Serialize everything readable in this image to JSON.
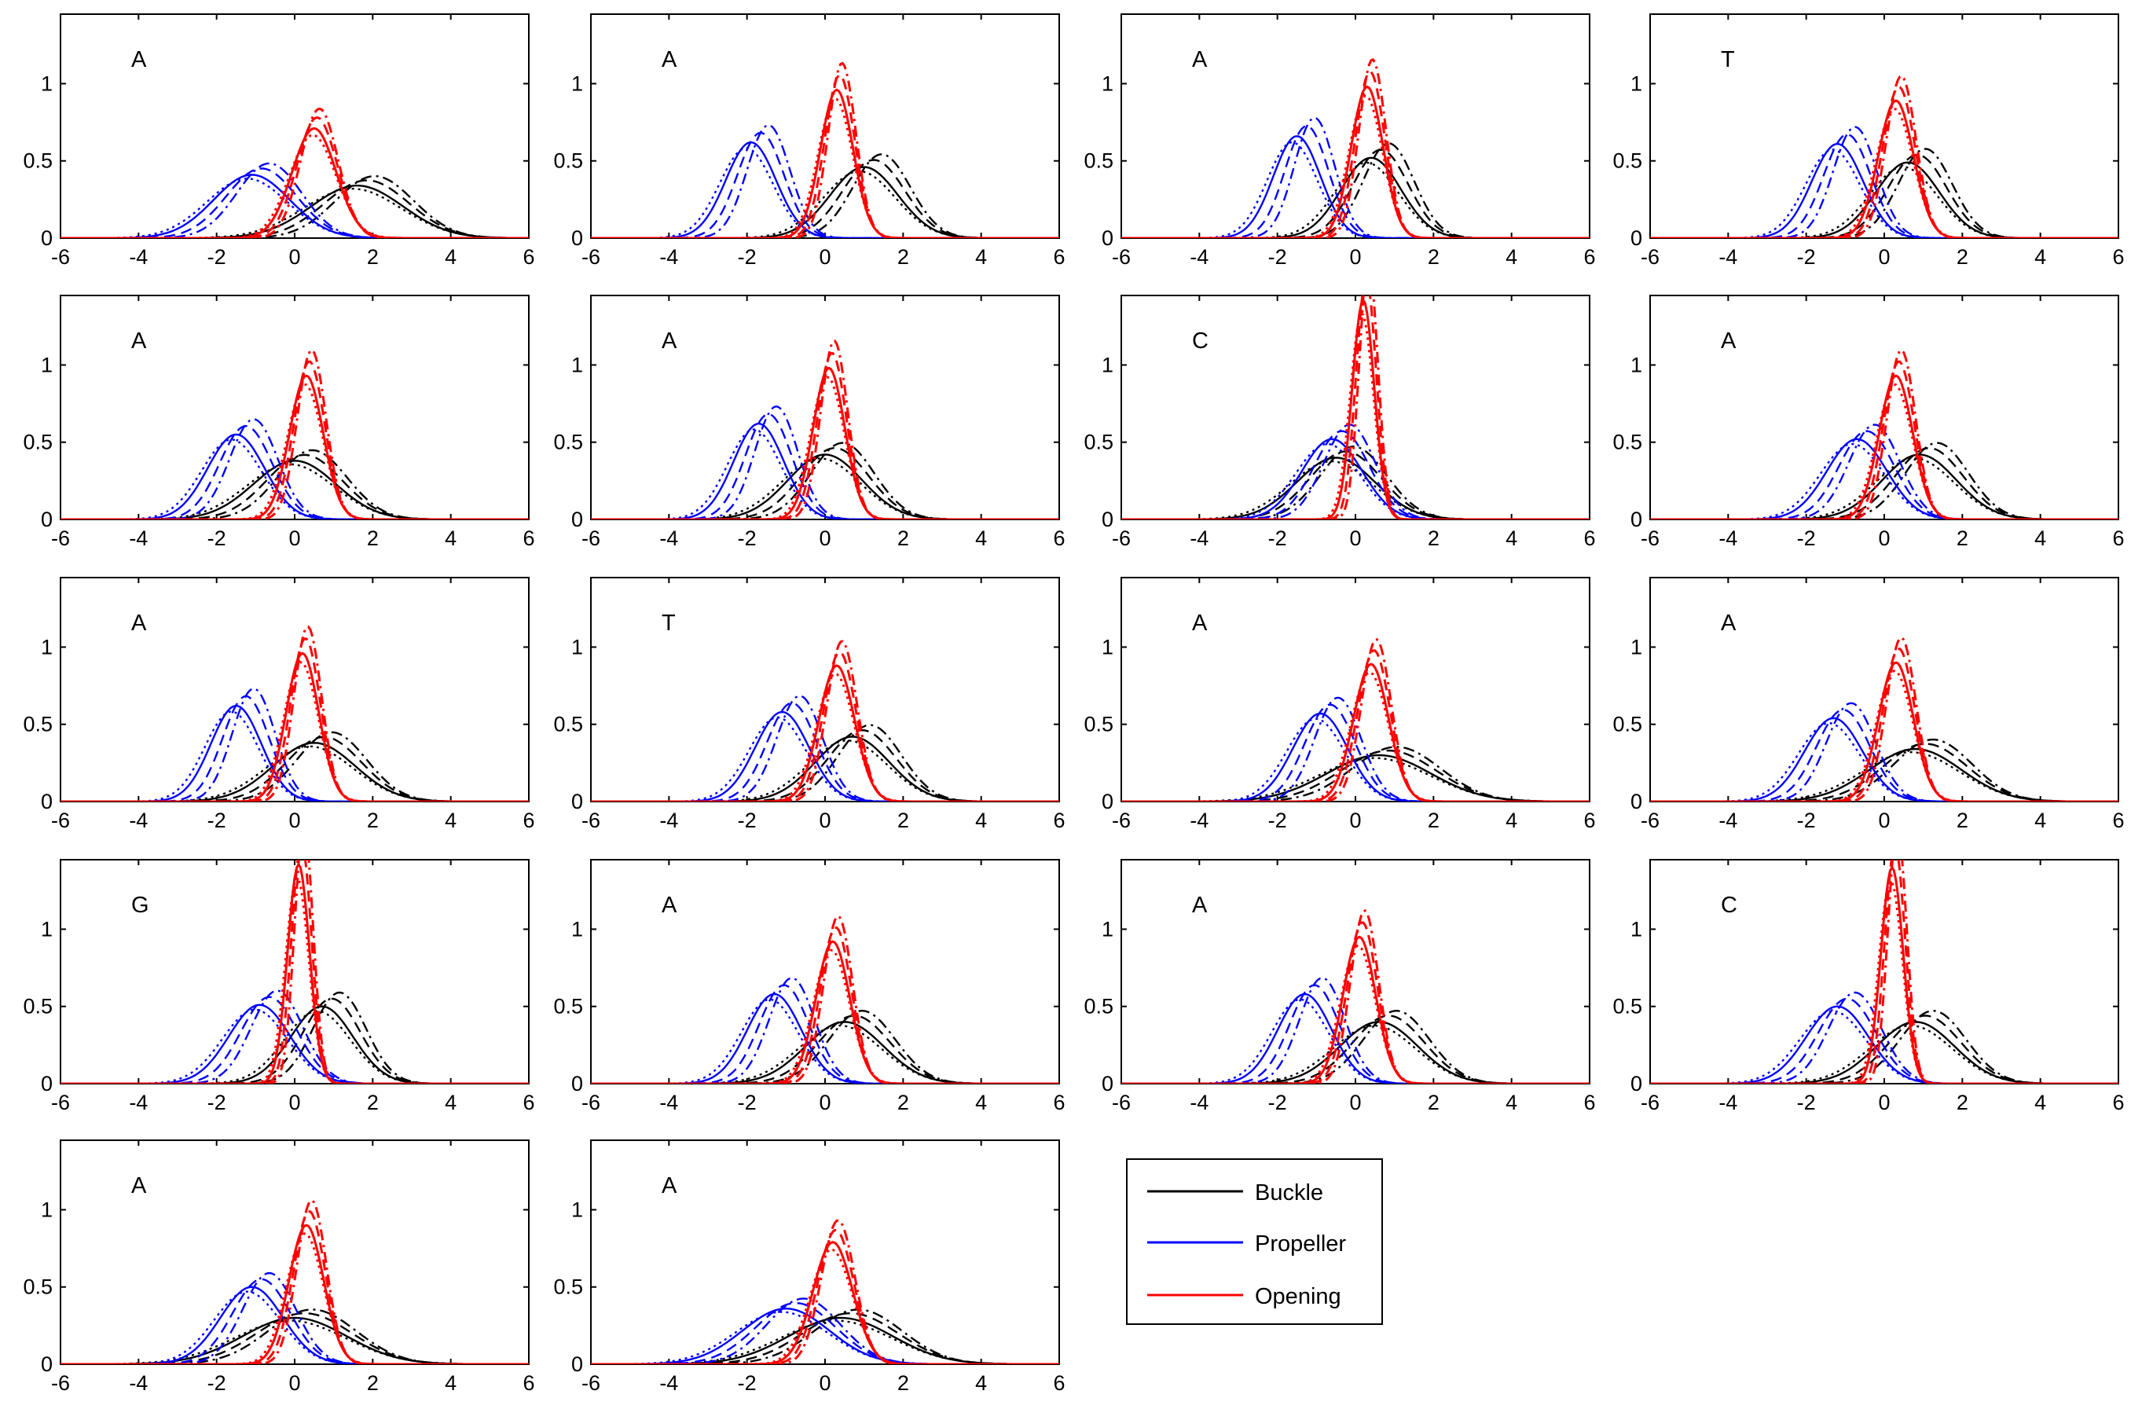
{
  "figure": {
    "legend": {
      "entries": [
        {
          "label": "Buckle",
          "color": "#000000"
        },
        {
          "label": "Propeller",
          "color": "#0000ff"
        },
        {
          "label": "Opening",
          "color": "#ff0000"
        }
      ],
      "placement": "row-5 column-3"
    }
  },
  "chart_data": [
    {
      "type": "line",
      "title": "A",
      "xlim": [
        -6,
        6
      ],
      "ylim": [
        0,
        1.45
      ],
      "xticks": [
        -6,
        -4,
        -2,
        0,
        2,
        4,
        6
      ],
      "yticks": [
        0,
        0.5,
        1
      ],
      "grid": false,
      "series": [
        {
          "name": "Buckle",
          "color": "#000000",
          "peak_x": 1.6,
          "peak_y": 0.34
        },
        {
          "name": "Propeller",
          "color": "#0000ff",
          "peak_x": -1.1,
          "peak_y": 0.41
        },
        {
          "name": "Opening",
          "color": "#ff0000",
          "peak_x": 0.5,
          "peak_y": 0.71
        }
      ]
    },
    {
      "type": "line",
      "title": "A",
      "xlim": [
        -6,
        6
      ],
      "ylim": [
        0,
        1.45
      ],
      "xticks": [
        -6,
        -4,
        -2,
        0,
        2,
        4,
        6
      ],
      "yticks": [
        0,
        0.5,
        1
      ],
      "grid": false,
      "series": [
        {
          "name": "Buckle",
          "color": "#000000",
          "peak_x": 1.0,
          "peak_y": 0.46
        },
        {
          "name": "Propeller",
          "color": "#0000ff",
          "peak_x": -1.9,
          "peak_y": 0.62
        },
        {
          "name": "Opening",
          "color": "#ff0000",
          "peak_x": 0.3,
          "peak_y": 0.96
        }
      ]
    },
    {
      "type": "line",
      "title": "A",
      "xlim": [
        -6,
        6
      ],
      "ylim": [
        0,
        1.45
      ],
      "xticks": [
        -6,
        -4,
        -2,
        0,
        2,
        4,
        6
      ],
      "yticks": [
        0,
        0.5,
        1
      ],
      "grid": false,
      "series": [
        {
          "name": "Buckle",
          "color": "#000000",
          "peak_x": 0.4,
          "peak_y": 0.52
        },
        {
          "name": "Propeller",
          "color": "#0000ff",
          "peak_x": -1.5,
          "peak_y": 0.66
        },
        {
          "name": "Opening",
          "color": "#ff0000",
          "peak_x": 0.3,
          "peak_y": 0.98
        }
      ]
    },
    {
      "type": "line",
      "title": "T",
      "xlim": [
        -6,
        6
      ],
      "ylim": [
        0,
        1.45
      ],
      "xticks": [
        -6,
        -4,
        -2,
        0,
        2,
        4,
        6
      ],
      "yticks": [
        0,
        0.5,
        1
      ],
      "grid": false,
      "series": [
        {
          "name": "Buckle",
          "color": "#000000",
          "peak_x": 0.6,
          "peak_y": 0.49
        },
        {
          "name": "Propeller",
          "color": "#0000ff",
          "peak_x": -1.2,
          "peak_y": 0.61
        },
        {
          "name": "Opening",
          "color": "#ff0000",
          "peak_x": 0.3,
          "peak_y": 0.89
        }
      ]
    },
    {
      "type": "line",
      "title": "A",
      "xlim": [
        -6,
        6
      ],
      "ylim": [
        0,
        1.45
      ],
      "xticks": [
        -6,
        -4,
        -2,
        0,
        2,
        4,
        6
      ],
      "yticks": [
        0,
        0.5,
        1
      ],
      "grid": false,
      "series": [
        {
          "name": "Buckle",
          "color": "#000000",
          "peak_x": 0.0,
          "peak_y": 0.38
        },
        {
          "name": "Propeller",
          "color": "#0000ff",
          "peak_x": -1.5,
          "peak_y": 0.55
        },
        {
          "name": "Opening",
          "color": "#ff0000",
          "peak_x": 0.3,
          "peak_y": 0.93
        }
      ]
    },
    {
      "type": "line",
      "title": "A",
      "xlim": [
        -6,
        6
      ],
      "ylim": [
        0,
        1.45
      ],
      "xticks": [
        -6,
        -4,
        -2,
        0,
        2,
        4,
        6
      ],
      "yticks": [
        0,
        0.5,
        1
      ],
      "grid": false,
      "series": [
        {
          "name": "Buckle",
          "color": "#000000",
          "peak_x": 0.0,
          "peak_y": 0.42
        },
        {
          "name": "Propeller",
          "color": "#0000ff",
          "peak_x": -1.7,
          "peak_y": 0.62
        },
        {
          "name": "Opening",
          "color": "#ff0000",
          "peak_x": 0.1,
          "peak_y": 0.98
        }
      ]
    },
    {
      "type": "line",
      "title": "C",
      "xlim": [
        -6,
        6
      ],
      "ylim": [
        0,
        1.45
      ],
      "xticks": [
        -6,
        -4,
        -2,
        0,
        2,
        4,
        6
      ],
      "yticks": [
        0,
        0.5,
        1
      ],
      "grid": false,
      "series": [
        {
          "name": "Buckle",
          "color": "#000000",
          "peak_x": -0.5,
          "peak_y": 0.4
        },
        {
          "name": "Propeller",
          "color": "#0000ff",
          "peak_x": -0.6,
          "peak_y": 0.52
        },
        {
          "name": "Opening",
          "color": "#ff0000",
          "peak_x": 0.2,
          "peak_y": 1.42
        }
      ]
    },
    {
      "type": "line",
      "title": "A",
      "xlim": [
        -6,
        6
      ],
      "ylim": [
        0,
        1.45
      ],
      "xticks": [
        -6,
        -4,
        -2,
        0,
        2,
        4,
        6
      ],
      "yticks": [
        0,
        0.5,
        1
      ],
      "grid": false,
      "series": [
        {
          "name": "Buckle",
          "color": "#000000",
          "peak_x": 0.9,
          "peak_y": 0.42
        },
        {
          "name": "Propeller",
          "color": "#0000ff",
          "peak_x": -0.7,
          "peak_y": 0.52
        },
        {
          "name": "Opening",
          "color": "#ff0000",
          "peak_x": 0.3,
          "peak_y": 0.93
        }
      ]
    },
    {
      "type": "line",
      "title": "A",
      "xlim": [
        -6,
        6
      ],
      "ylim": [
        0,
        1.45
      ],
      "xticks": [
        -6,
        -4,
        -2,
        0,
        2,
        4,
        6
      ],
      "yticks": [
        0,
        0.5,
        1
      ],
      "grid": false,
      "series": [
        {
          "name": "Buckle",
          "color": "#000000",
          "peak_x": 0.5,
          "peak_y": 0.38
        },
        {
          "name": "Propeller",
          "color": "#0000ff",
          "peak_x": -1.5,
          "peak_y": 0.62
        },
        {
          "name": "Opening",
          "color": "#ff0000",
          "peak_x": 0.2,
          "peak_y": 0.96
        }
      ]
    },
    {
      "type": "line",
      "title": "T",
      "xlim": [
        -6,
        6
      ],
      "ylim": [
        0,
        1.45
      ],
      "xticks": [
        -6,
        -4,
        -2,
        0,
        2,
        4,
        6
      ],
      "yticks": [
        0,
        0.5,
        1
      ],
      "grid": false,
      "series": [
        {
          "name": "Buckle",
          "color": "#000000",
          "peak_x": 0.7,
          "peak_y": 0.42
        },
        {
          "name": "Propeller",
          "color": "#0000ff",
          "peak_x": -1.1,
          "peak_y": 0.58
        },
        {
          "name": "Opening",
          "color": "#ff0000",
          "peak_x": 0.3,
          "peak_y": 0.88
        }
      ]
    },
    {
      "type": "line",
      "title": "A",
      "xlim": [
        -6,
        6
      ],
      "ylim": [
        0,
        1.45
      ],
      "xticks": [
        -6,
        -4,
        -2,
        0,
        2,
        4,
        6
      ],
      "yticks": [
        0,
        0.5,
        1
      ],
      "grid": false,
      "series": [
        {
          "name": "Buckle",
          "color": "#000000",
          "peak_x": 0.6,
          "peak_y": 0.3
        },
        {
          "name": "Propeller",
          "color": "#0000ff",
          "peak_x": -0.9,
          "peak_y": 0.57
        },
        {
          "name": "Opening",
          "color": "#ff0000",
          "peak_x": 0.4,
          "peak_y": 0.89
        }
      ]
    },
    {
      "type": "line",
      "title": "A",
      "xlim": [
        -6,
        6
      ],
      "ylim": [
        0,
        1.45
      ],
      "xticks": [
        -6,
        -4,
        -2,
        0,
        2,
        4,
        6
      ],
      "yticks": [
        0,
        0.5,
        1
      ],
      "grid": false,
      "series": [
        {
          "name": "Buckle",
          "color": "#000000",
          "peak_x": 0.8,
          "peak_y": 0.34
        },
        {
          "name": "Propeller",
          "color": "#0000ff",
          "peak_x": -1.3,
          "peak_y": 0.54
        },
        {
          "name": "Opening",
          "color": "#ff0000",
          "peak_x": 0.3,
          "peak_y": 0.9
        }
      ]
    },
    {
      "type": "line",
      "title": "G",
      "xlim": [
        -6,
        6
      ],
      "ylim": [
        0,
        1.45
      ],
      "xticks": [
        -6,
        -4,
        -2,
        0,
        2,
        4,
        6
      ],
      "yticks": [
        0,
        0.5,
        1
      ],
      "grid": false,
      "series": [
        {
          "name": "Buckle",
          "color": "#000000",
          "peak_x": 0.7,
          "peak_y": 0.5
        },
        {
          "name": "Propeller",
          "color": "#0000ff",
          "peak_x": -0.9,
          "peak_y": 0.51
        },
        {
          "name": "Opening",
          "color": "#ff0000",
          "peak_x": 0.1,
          "peak_y": 1.42
        }
      ]
    },
    {
      "type": "line",
      "title": "A",
      "xlim": [
        -6,
        6
      ],
      "ylim": [
        0,
        1.45
      ],
      "xticks": [
        -6,
        -4,
        -2,
        0,
        2,
        4,
        6
      ],
      "yticks": [
        0,
        0.5,
        1
      ],
      "grid": false,
      "series": [
        {
          "name": "Buckle",
          "color": "#000000",
          "peak_x": 0.5,
          "peak_y": 0.4
        },
        {
          "name": "Propeller",
          "color": "#0000ff",
          "peak_x": -1.3,
          "peak_y": 0.58
        },
        {
          "name": "Opening",
          "color": "#ff0000",
          "peak_x": 0.2,
          "peak_y": 0.92
        }
      ]
    },
    {
      "type": "line",
      "title": "A",
      "xlim": [
        -6,
        6
      ],
      "ylim": [
        0,
        1.45
      ],
      "xticks": [
        -6,
        -4,
        -2,
        0,
        2,
        4,
        6
      ],
      "yticks": [
        0,
        0.5,
        1
      ],
      "grid": false,
      "series": [
        {
          "name": "Buckle",
          "color": "#000000",
          "peak_x": 0.6,
          "peak_y": 0.4
        },
        {
          "name": "Propeller",
          "color": "#0000ff",
          "peak_x": -1.3,
          "peak_y": 0.58
        },
        {
          "name": "Opening",
          "color": "#ff0000",
          "peak_x": 0.1,
          "peak_y": 0.95
        }
      ]
    },
    {
      "type": "line",
      "title": "C",
      "xlim": [
        -6,
        6
      ],
      "ylim": [
        0,
        1.45
      ],
      "xticks": [
        -6,
        -4,
        -2,
        0,
        2,
        4,
        6
      ],
      "yticks": [
        0,
        0.5,
        1
      ],
      "grid": false,
      "series": [
        {
          "name": "Buckle",
          "color": "#000000",
          "peak_x": 0.8,
          "peak_y": 0.4
        },
        {
          "name": "Propeller",
          "color": "#0000ff",
          "peak_x": -1.2,
          "peak_y": 0.5
        },
        {
          "name": "Opening",
          "color": "#ff0000",
          "peak_x": 0.2,
          "peak_y": 1.4
        }
      ]
    },
    {
      "type": "line",
      "title": "A",
      "xlim": [
        -6,
        6
      ],
      "ylim": [
        0,
        1.45
      ],
      "xticks": [
        -6,
        -4,
        -2,
        0,
        2,
        4,
        6
      ],
      "yticks": [
        0,
        0.5,
        1
      ],
      "grid": false,
      "series": [
        {
          "name": "Buckle",
          "color": "#000000",
          "peak_x": 0.0,
          "peak_y": 0.3
        },
        {
          "name": "Propeller",
          "color": "#0000ff",
          "peak_x": -1.1,
          "peak_y": 0.5
        },
        {
          "name": "Opening",
          "color": "#ff0000",
          "peak_x": 0.3,
          "peak_y": 0.9
        }
      ]
    },
    {
      "type": "line",
      "title": "A",
      "xlim": [
        -6,
        6
      ],
      "ylim": [
        0,
        1.45
      ],
      "xticks": [
        -6,
        -4,
        -2,
        0,
        2,
        4,
        6
      ],
      "yticks": [
        0,
        0.5,
        1
      ],
      "grid": false,
      "series": [
        {
          "name": "Buckle",
          "color": "#000000",
          "peak_x": 0.4,
          "peak_y": 0.3
        },
        {
          "name": "Propeller",
          "color": "#0000ff",
          "peak_x": -1.0,
          "peak_y": 0.36
        },
        {
          "name": "Opening",
          "color": "#ff0000",
          "peak_x": 0.2,
          "peak_y": 0.79
        }
      ]
    }
  ]
}
